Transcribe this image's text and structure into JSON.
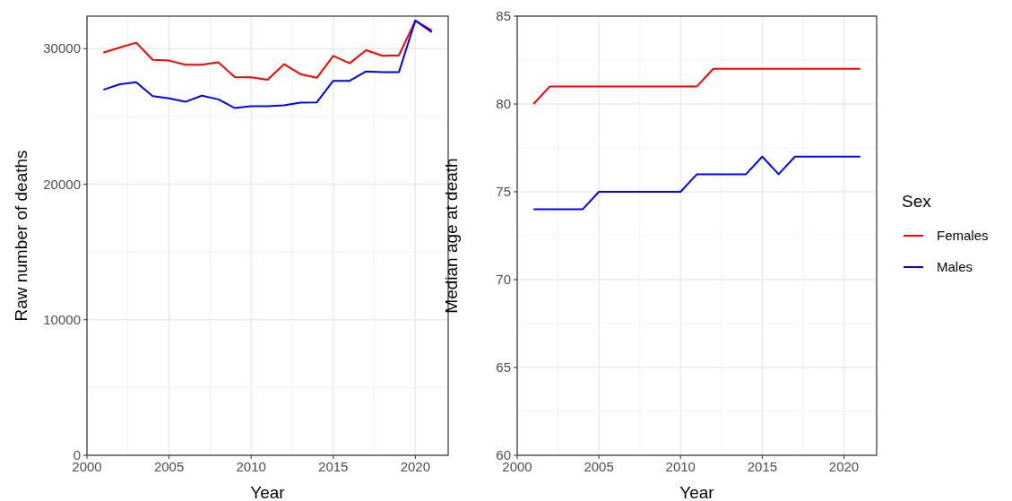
{
  "chart_data": [
    {
      "type": "line",
      "xlabel": "Year",
      "ylabel": "Raw number of deaths",
      "x": [
        2001,
        2002,
        2003,
        2004,
        2005,
        2006,
        2007,
        2008,
        2009,
        2010,
        2011,
        2012,
        2013,
        2014,
        2015,
        2016,
        2017,
        2018,
        2019,
        2020,
        2021
      ],
      "xlim": [
        2000,
        2022
      ],
      "xticks": [
        2000,
        2005,
        2010,
        2015,
        2020
      ],
      "ylim": [
        0,
        32400
      ],
      "yticks": [
        0,
        10000,
        20000,
        30000
      ],
      "grid": true,
      "legend": false,
      "series": [
        {
          "color": "#ff0000",
          "values": [
            29710,
            30090,
            30440,
            29180,
            29120,
            28810,
            28810,
            29000,
            27900,
            27880,
            27700,
            28850,
            28120,
            27850,
            29470,
            28920,
            29890,
            29470,
            29510,
            32060,
            31350
          ]
        },
        {
          "color": "#0000ff",
          "values": [
            26970,
            27370,
            27520,
            26500,
            26330,
            26080,
            26530,
            26260,
            25620,
            25750,
            25750,
            25820,
            26020,
            26040,
            27630,
            27630,
            28320,
            28270,
            28270,
            32080,
            31220
          ]
        }
      ]
    },
    {
      "type": "line",
      "xlabel": "Year",
      "ylabel": "Median age at death",
      "legend_title": "Sex",
      "legend": "right",
      "x": [
        2001,
        2002,
        2003,
        2004,
        2005,
        2006,
        2007,
        2008,
        2009,
        2010,
        2011,
        2012,
        2013,
        2014,
        2015,
        2016,
        2017,
        2018,
        2019,
        2020,
        2021
      ],
      "xlim": [
        2000,
        2022
      ],
      "xticks": [
        2000,
        2005,
        2010,
        2015,
        2020
      ],
      "ylim": [
        60,
        85
      ],
      "yticks": [
        60,
        65,
        70,
        75,
        80,
        85
      ],
      "grid": true,
      "series": [
        {
          "name": "Females",
          "color": "#ff0000",
          "values": [
            80,
            81,
            81,
            81,
            81,
            81,
            81,
            81,
            81,
            81,
            81,
            82,
            82,
            82,
            82,
            82,
            82,
            82,
            82,
            82,
            82
          ]
        },
        {
          "name": "Males",
          "color": "#0000ff",
          "values": [
            74,
            74,
            74,
            74,
            75,
            75,
            75,
            75,
            75,
            75,
            76,
            76,
            76,
            76,
            77,
            76,
            77,
            77,
            77,
            77,
            77
          ]
        }
      ]
    }
  ]
}
